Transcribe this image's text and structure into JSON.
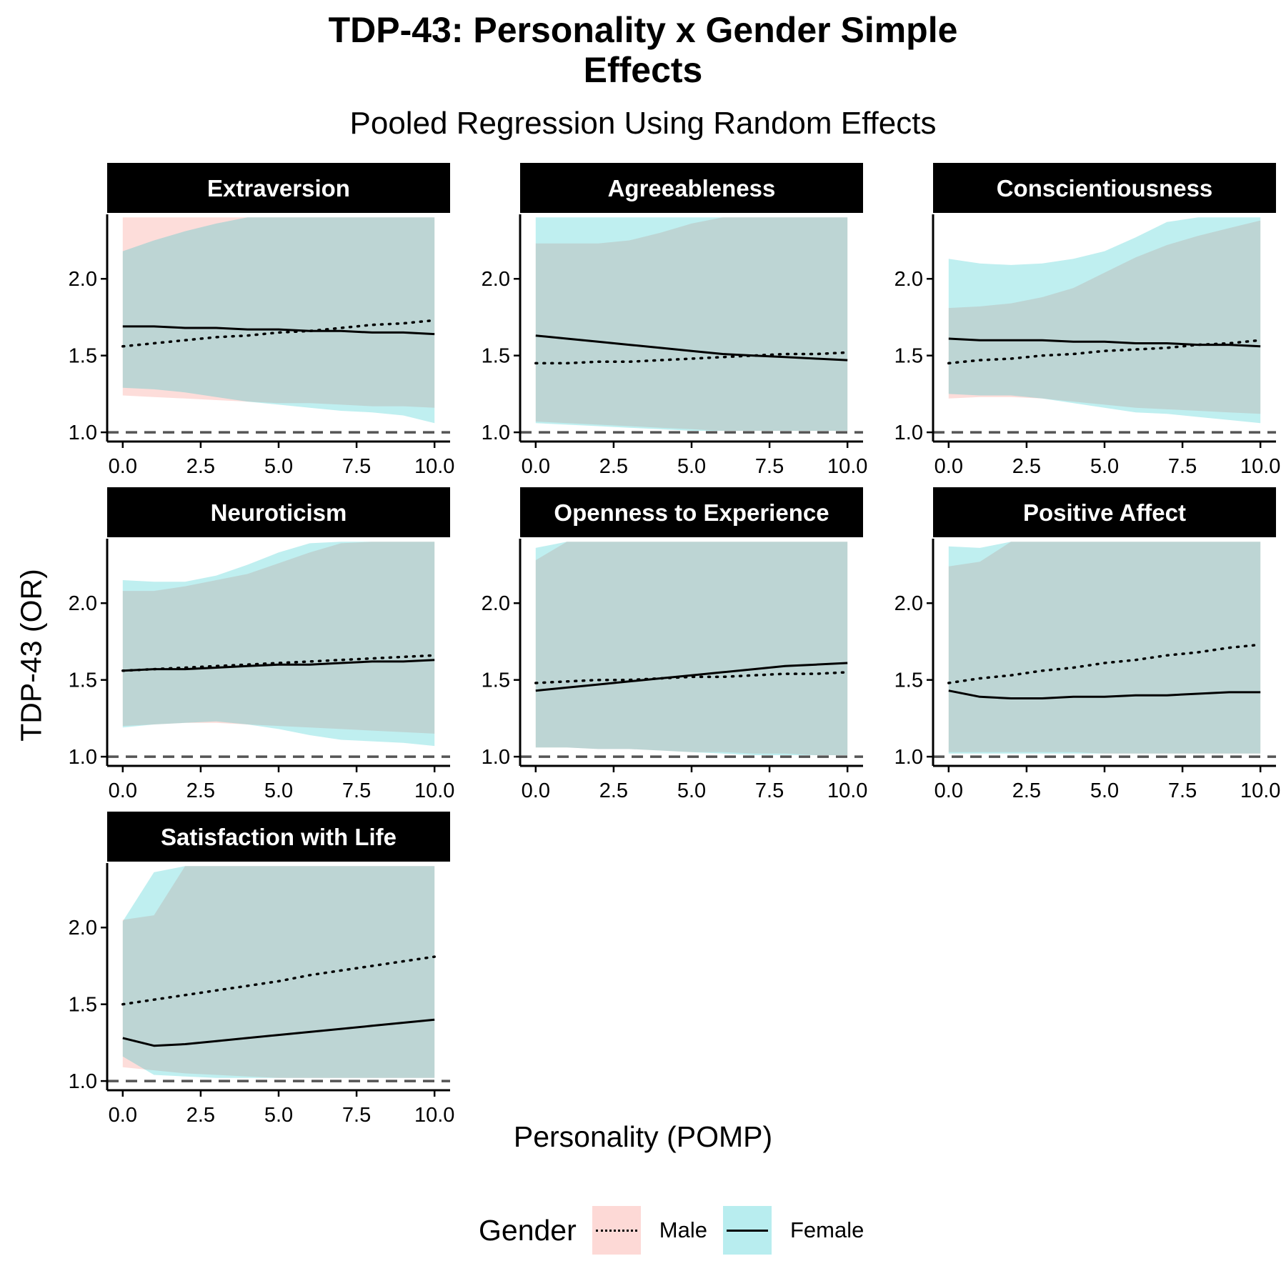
{
  "chart_data": {
    "type": "line",
    "title": "TDP-43: Personality x Gender Simple Effects",
    "title_lines": [
      "TDP-43: Personality x Gender Simple",
      "Effects"
    ],
    "subtitle": "Pooled Regression Using Random Effects",
    "xlabel": "Personality (POMP)",
    "ylabel": "TDP-43 (OR)",
    "xlim": [
      -0.5,
      10.5
    ],
    "ylim": [
      0.94,
      2.42
    ],
    "x_ticks": [
      0.0,
      2.5,
      5.0,
      7.5,
      10.0
    ],
    "x_tick_labels": [
      "0.0",
      "2.5",
      "5.0",
      "7.5",
      "10.0"
    ],
    "y_ticks": [
      1.0,
      1.5,
      2.0
    ],
    "y_tick_labels": [
      "1.0",
      "1.5",
      "2.0"
    ],
    "reference_line": 1.0,
    "x": [
      0,
      1,
      2,
      3,
      4,
      5,
      6,
      7,
      8,
      9,
      10
    ],
    "legend": {
      "title": "Gender",
      "items": [
        {
          "name": "Male",
          "linetype": "dotted",
          "fill": "#F8766D"
        },
        {
          "name": "Female",
          "linetype": "solid",
          "fill": "#00BFC4"
        }
      ],
      "position": "bottom"
    },
    "colors": {
      "male_fill": "#F8766D",
      "female_fill": "#00BFC4",
      "line": "#000000",
      "reference": "#555555"
    },
    "panels": [
      {
        "name": "Extraversion",
        "series": [
          {
            "name": "Male",
            "values": [
              1.56,
              1.58,
              1.6,
              1.62,
              1.63,
              1.65,
              1.66,
              1.68,
              1.7,
              1.71,
              1.73
            ],
            "lower": [
              1.24,
              1.23,
              1.22,
              1.21,
              1.2,
              1.19,
              1.19,
              1.18,
              1.17,
              1.17,
              1.16
            ],
            "upper": [
              2.4,
              2.4,
              2.4,
              2.4,
              2.4,
              2.4,
              2.4,
              2.4,
              2.4,
              2.4,
              2.4
            ]
          },
          {
            "name": "Female",
            "values": [
              1.69,
              1.69,
              1.68,
              1.68,
              1.67,
              1.67,
              1.66,
              1.66,
              1.65,
              1.65,
              1.64
            ],
            "lower": [
              1.29,
              1.28,
              1.26,
              1.23,
              1.2,
              1.18,
              1.16,
              1.14,
              1.13,
              1.11,
              1.06
            ],
            "upper": [
              2.18,
              2.25,
              2.31,
              2.36,
              2.4,
              2.4,
              2.4,
              2.4,
              2.4,
              2.4,
              2.4
            ]
          }
        ]
      },
      {
        "name": "Agreeableness",
        "series": [
          {
            "name": "Male",
            "values": [
              1.45,
              1.45,
              1.46,
              1.46,
              1.47,
              1.48,
              1.49,
              1.5,
              1.51,
              1.51,
              1.52
            ],
            "lower": [
              1.07,
              1.06,
              1.05,
              1.04,
              1.03,
              1.02,
              1.01,
              1.01,
              1.01,
              1.01,
              1.01
            ],
            "upper": [
              2.23,
              2.23,
              2.23,
              2.25,
              2.3,
              2.36,
              2.4,
              2.4,
              2.4,
              2.4,
              2.4
            ]
          },
          {
            "name": "Female",
            "values": [
              1.63,
              1.61,
              1.59,
              1.57,
              1.55,
              1.53,
              1.51,
              1.5,
              1.49,
              1.48,
              1.47
            ],
            "lower": [
              1.06,
              1.05,
              1.04,
              1.03,
              1.02,
              1.01,
              1.01,
              1.01,
              1.01,
              1.01,
              1.01
            ],
            "upper": [
              2.4,
              2.4,
              2.4,
              2.4,
              2.4,
              2.4,
              2.4,
              2.4,
              2.4,
              2.4,
              2.4
            ]
          }
        ]
      },
      {
        "name": "Conscientiousness",
        "series": [
          {
            "name": "Male",
            "values": [
              1.45,
              1.47,
              1.48,
              1.5,
              1.51,
              1.53,
              1.54,
              1.55,
              1.57,
              1.58,
              1.6
            ],
            "lower": [
              1.22,
              1.23,
              1.23,
              1.22,
              1.2,
              1.18,
              1.16,
              1.15,
              1.14,
              1.13,
              1.12
            ],
            "upper": [
              1.81,
              1.82,
              1.84,
              1.88,
              1.94,
              2.04,
              2.14,
              2.22,
              2.28,
              2.33,
              2.38
            ]
          },
          {
            "name": "Female",
            "values": [
              1.61,
              1.6,
              1.6,
              1.6,
              1.59,
              1.59,
              1.58,
              1.58,
              1.57,
              1.57,
              1.56
            ],
            "lower": [
              1.25,
              1.24,
              1.24,
              1.22,
              1.19,
              1.16,
              1.13,
              1.12,
              1.1,
              1.08,
              1.06
            ],
            "upper": [
              2.13,
              2.1,
              2.09,
              2.1,
              2.13,
              2.18,
              2.27,
              2.37,
              2.4,
              2.4,
              2.4
            ]
          }
        ]
      },
      {
        "name": "Neuroticism",
        "series": [
          {
            "name": "Male",
            "values": [
              1.56,
              1.57,
              1.58,
              1.59,
              1.6,
              1.61,
              1.62,
              1.63,
              1.64,
              1.65,
              1.66
            ],
            "lower": [
              1.2,
              1.21,
              1.22,
              1.22,
              1.21,
              1.2,
              1.19,
              1.18,
              1.17,
              1.16,
              1.15
            ],
            "upper": [
              2.08,
              2.08,
              2.11,
              2.15,
              2.19,
              2.26,
              2.33,
              2.39,
              2.4,
              2.4,
              2.4
            ]
          },
          {
            "name": "Female",
            "values": [
              1.56,
              1.57,
              1.57,
              1.58,
              1.59,
              1.6,
              1.6,
              1.61,
              1.62,
              1.62,
              1.63
            ],
            "lower": [
              1.19,
              1.21,
              1.22,
              1.23,
              1.21,
              1.18,
              1.14,
              1.11,
              1.1,
              1.09,
              1.07
            ],
            "upper": [
              2.15,
              2.14,
              2.14,
              2.18,
              2.25,
              2.33,
              2.39,
              2.4,
              2.4,
              2.4,
              2.4
            ]
          }
        ]
      },
      {
        "name": "Openness to Experience",
        "series": [
          {
            "name": "Male",
            "values": [
              1.48,
              1.49,
              1.5,
              1.5,
              1.51,
              1.52,
              1.52,
              1.53,
              1.54,
              1.54,
              1.55
            ],
            "lower": [
              1.06,
              1.06,
              1.05,
              1.05,
              1.04,
              1.03,
              1.03,
              1.02,
              1.02,
              1.01,
              1.01
            ],
            "upper": [
              2.28,
              2.4,
              2.4,
              2.4,
              2.4,
              2.4,
              2.4,
              2.4,
              2.4,
              2.4,
              2.4
            ]
          },
          {
            "name": "Female",
            "values": [
              1.43,
              1.45,
              1.47,
              1.49,
              1.51,
              1.53,
              1.55,
              1.57,
              1.59,
              1.6,
              1.61
            ],
            "lower": [
              1.06,
              1.06,
              1.05,
              1.05,
              1.04,
              1.03,
              1.02,
              1.01,
              1.01,
              1.01,
              1.01
            ],
            "upper": [
              2.36,
              2.4,
              2.4,
              2.4,
              2.4,
              2.4,
              2.4,
              2.4,
              2.4,
              2.4,
              2.4
            ]
          }
        ]
      },
      {
        "name": "Positive Affect",
        "series": [
          {
            "name": "Male",
            "values": [
              1.48,
              1.51,
              1.53,
              1.56,
              1.58,
              1.61,
              1.63,
              1.66,
              1.68,
              1.71,
              1.73
            ],
            "lower": [
              1.03,
              1.03,
              1.03,
              1.03,
              1.03,
              1.02,
              1.02,
              1.02,
              1.02,
              1.02,
              1.02
            ],
            "upper": [
              2.24,
              2.27,
              2.4,
              2.4,
              2.4,
              2.4,
              2.4,
              2.4,
              2.4,
              2.4,
              2.4
            ]
          },
          {
            "name": "Female",
            "values": [
              1.43,
              1.39,
              1.38,
              1.38,
              1.39,
              1.39,
              1.4,
              1.4,
              1.41,
              1.42,
              1.42
            ],
            "lower": [
              1.02,
              1.02,
              1.02,
              1.02,
              1.02,
              1.02,
              1.02,
              1.02,
              1.02,
              1.02,
              1.02
            ],
            "upper": [
              2.37,
              2.36,
              2.4,
              2.4,
              2.4,
              2.4,
              2.4,
              2.4,
              2.4,
              2.4,
              2.4
            ]
          }
        ]
      },
      {
        "name": "Satisfaction with Life",
        "series": [
          {
            "name": "Male",
            "values": [
              1.5,
              1.53,
              1.56,
              1.59,
              1.62,
              1.65,
              1.69,
              1.72,
              1.75,
              1.78,
              1.81
            ],
            "lower": [
              1.09,
              1.07,
              1.05,
              1.04,
              1.03,
              1.02,
              1.02,
              1.02,
              1.02,
              1.02,
              1.02
            ],
            "upper": [
              2.05,
              2.08,
              2.4,
              2.4,
              2.4,
              2.4,
              2.4,
              2.4,
              2.4,
              2.4,
              2.4
            ]
          },
          {
            "name": "Female",
            "values": [
              1.28,
              1.23,
              1.24,
              1.26,
              1.28,
              1.3,
              1.32,
              1.34,
              1.36,
              1.38,
              1.4
            ],
            "lower": [
              1.16,
              1.04,
              1.03,
              1.02,
              1.02,
              1.02,
              1.02,
              1.02,
              1.02,
              1.02,
              1.02
            ],
            "upper": [
              2.04,
              2.36,
              2.4,
              2.4,
              2.4,
              2.4,
              2.4,
              2.4,
              2.4,
              2.4,
              2.4
            ]
          }
        ]
      }
    ]
  }
}
